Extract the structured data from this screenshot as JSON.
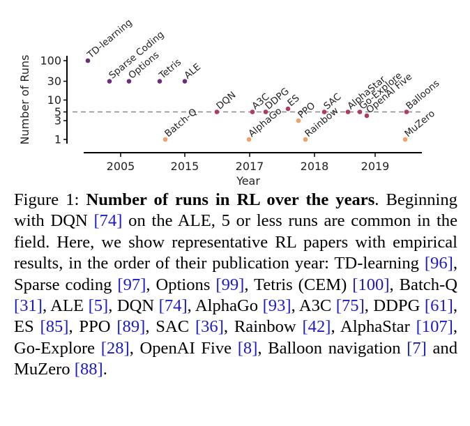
{
  "chart_data": {
    "type": "scatter",
    "title": "",
    "xlabel": "Year",
    "ylabel": "Number of Runs",
    "y_scale": "log",
    "y_ticks": [
      1,
      3,
      5,
      10,
      30,
      100
    ],
    "x_ticks": [
      "2005",
      "2015",
      "2017",
      "2018",
      "2019"
    ],
    "reference_line": {
      "y": 5,
      "style": "dashed"
    },
    "legend": "none",
    "grid": false,
    "colors": {
      "high": "#6b2e7a",
      "mid": "#b23a5c",
      "low": "#f0a06a",
      "reference": "#888888"
    },
    "points": [
      {
        "label": "TD-learning",
        "year": "2005",
        "runs": 100,
        "color_group": "high"
      },
      {
        "label": "Sparse Coding",
        "year": "2005",
        "runs": 30,
        "color_group": "high"
      },
      {
        "label": "Options",
        "year": "2005",
        "runs": 30,
        "color_group": "high"
      },
      {
        "label": "Tetris",
        "year": "2015",
        "runs": 30,
        "color_group": "high"
      },
      {
        "label": "ALE",
        "year": "2015",
        "runs": 30,
        "color_group": "high"
      },
      {
        "label": "Batch-Q",
        "year": "2015",
        "runs": 1,
        "color_group": "low"
      },
      {
        "label": "DQN",
        "year": "2015",
        "runs": 5,
        "color_group": "mid"
      },
      {
        "label": "A3C",
        "year": "2017",
        "runs": 5,
        "color_group": "mid"
      },
      {
        "label": "DDPG",
        "year": "2017",
        "runs": 5,
        "color_group": "mid"
      },
      {
        "label": "AlphaGo",
        "year": "2017",
        "runs": 1,
        "color_group": "low"
      },
      {
        "label": "ES",
        "year": "2017",
        "runs": 6,
        "color_group": "mid"
      },
      {
        "label": "PPO",
        "year": "2018",
        "runs": 3,
        "color_group": "low"
      },
      {
        "label": "SAC",
        "year": "2018",
        "runs": 5,
        "color_group": "mid"
      },
      {
        "label": "Rainbow",
        "year": "2018",
        "runs": 1,
        "color_group": "low"
      },
      {
        "label": "AlphaStar",
        "year": "2018",
        "runs": 5,
        "color_group": "mid"
      },
      {
        "label": "Go-Explore",
        "year": "2019",
        "runs": 5,
        "color_group": "mid"
      },
      {
        "label": "OpenAI Five",
        "year": "2019",
        "runs": 4,
        "color_group": "mid"
      },
      {
        "label": "Balloons",
        "year": "2019",
        "runs": 5,
        "color_group": "mid"
      },
      {
        "label": "MuZero",
        "year": "2019",
        "runs": 1,
        "color_group": "low"
      }
    ]
  },
  "caption": {
    "figure_label": "Figure 1: ",
    "bold_title": "Number of runs in RL over the years",
    "segments": [
      ". Beginning with DQN ",
      "[74]",
      " on the ALE, 5 or less runs are common in the field. Here, we show representative RL papers with empirical results, in the order of their publication year: TD-learning ",
      "[96]",
      ", Sparse coding ",
      "[97]",
      ", Options ",
      "[99]",
      ", Tetris (CEM) ",
      "[100]",
      ", Batch-Q ",
      "[31]",
      ", ALE ",
      "[5]",
      ", DQN ",
      "[74]",
      ", AlphaGo ",
      "[93]",
      ", A3C ",
      "[75]",
      ", DDPG ",
      "[61]",
      ", ES ",
      "[85]",
      ", PPO ",
      "[89]",
      ", SAC ",
      "[36]",
      ", Rainbow ",
      "[42]",
      ", AlphaStar ",
      "[107]",
      ", Go-Explore ",
      "[28]",
      ", OpenAI Five ",
      "[8]",
      ", Balloon navigation ",
      "[7]",
      " and MuZero ",
      "[88]",
      "."
    ]
  }
}
